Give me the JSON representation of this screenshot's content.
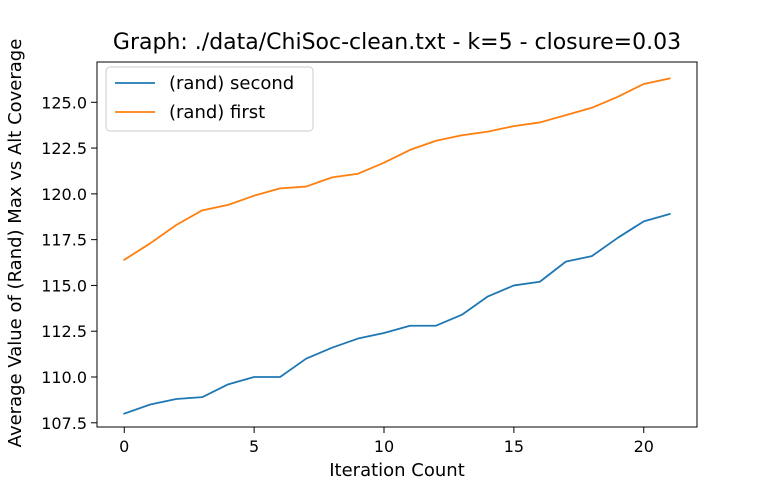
{
  "chart_data": {
    "type": "line",
    "title": "Graph: ./data/ChiSoc-clean.txt - k=5 - closure=0.03",
    "xlabel": "Iteration Count",
    "ylabel": "Average Value of (Rand) Max vs Alt Coverage",
    "xlim": [
      -1.05,
      22.05
    ],
    "ylim": [
      107.27,
      127.2
    ],
    "xticks": [
      0,
      5,
      10,
      15,
      20
    ],
    "xtick_labels": [
      "0",
      "5",
      "10",
      "15",
      "20"
    ],
    "yticks": [
      107.5,
      110.0,
      112.5,
      115.0,
      117.5,
      120.0,
      122.5,
      125.0
    ],
    "ytick_labels": [
      "107.5",
      "110.0",
      "112.5",
      "115.0",
      "117.5",
      "120.0",
      "122.5",
      "125.0"
    ],
    "grid": false,
    "legend_position": "upper-left",
    "x": [
      0,
      1,
      2,
      3,
      4,
      5,
      6,
      7,
      8,
      9,
      10,
      11,
      12,
      13,
      14,
      15,
      16,
      17,
      18,
      19,
      20,
      21
    ],
    "series": [
      {
        "name": "(rand) second",
        "color": "#1f77b4",
        "values": [
          108.0,
          108.5,
          108.8,
          108.9,
          109.6,
          110.0,
          110.0,
          111.0,
          111.6,
          112.1,
          112.4,
          112.8,
          112.8,
          113.4,
          114.4,
          115.0,
          115.2,
          116.3,
          116.6,
          117.6,
          118.5,
          118.9
        ]
      },
      {
        "name": "(rand) first",
        "color": "#ff7f0e",
        "values": [
          116.4,
          117.3,
          118.3,
          119.1,
          119.4,
          119.9,
          120.3,
          120.4,
          120.9,
          121.1,
          121.7,
          122.4,
          122.9,
          123.2,
          123.4,
          123.7,
          123.9,
          124.3,
          124.7,
          125.3,
          126.0,
          126.3
        ]
      }
    ]
  }
}
